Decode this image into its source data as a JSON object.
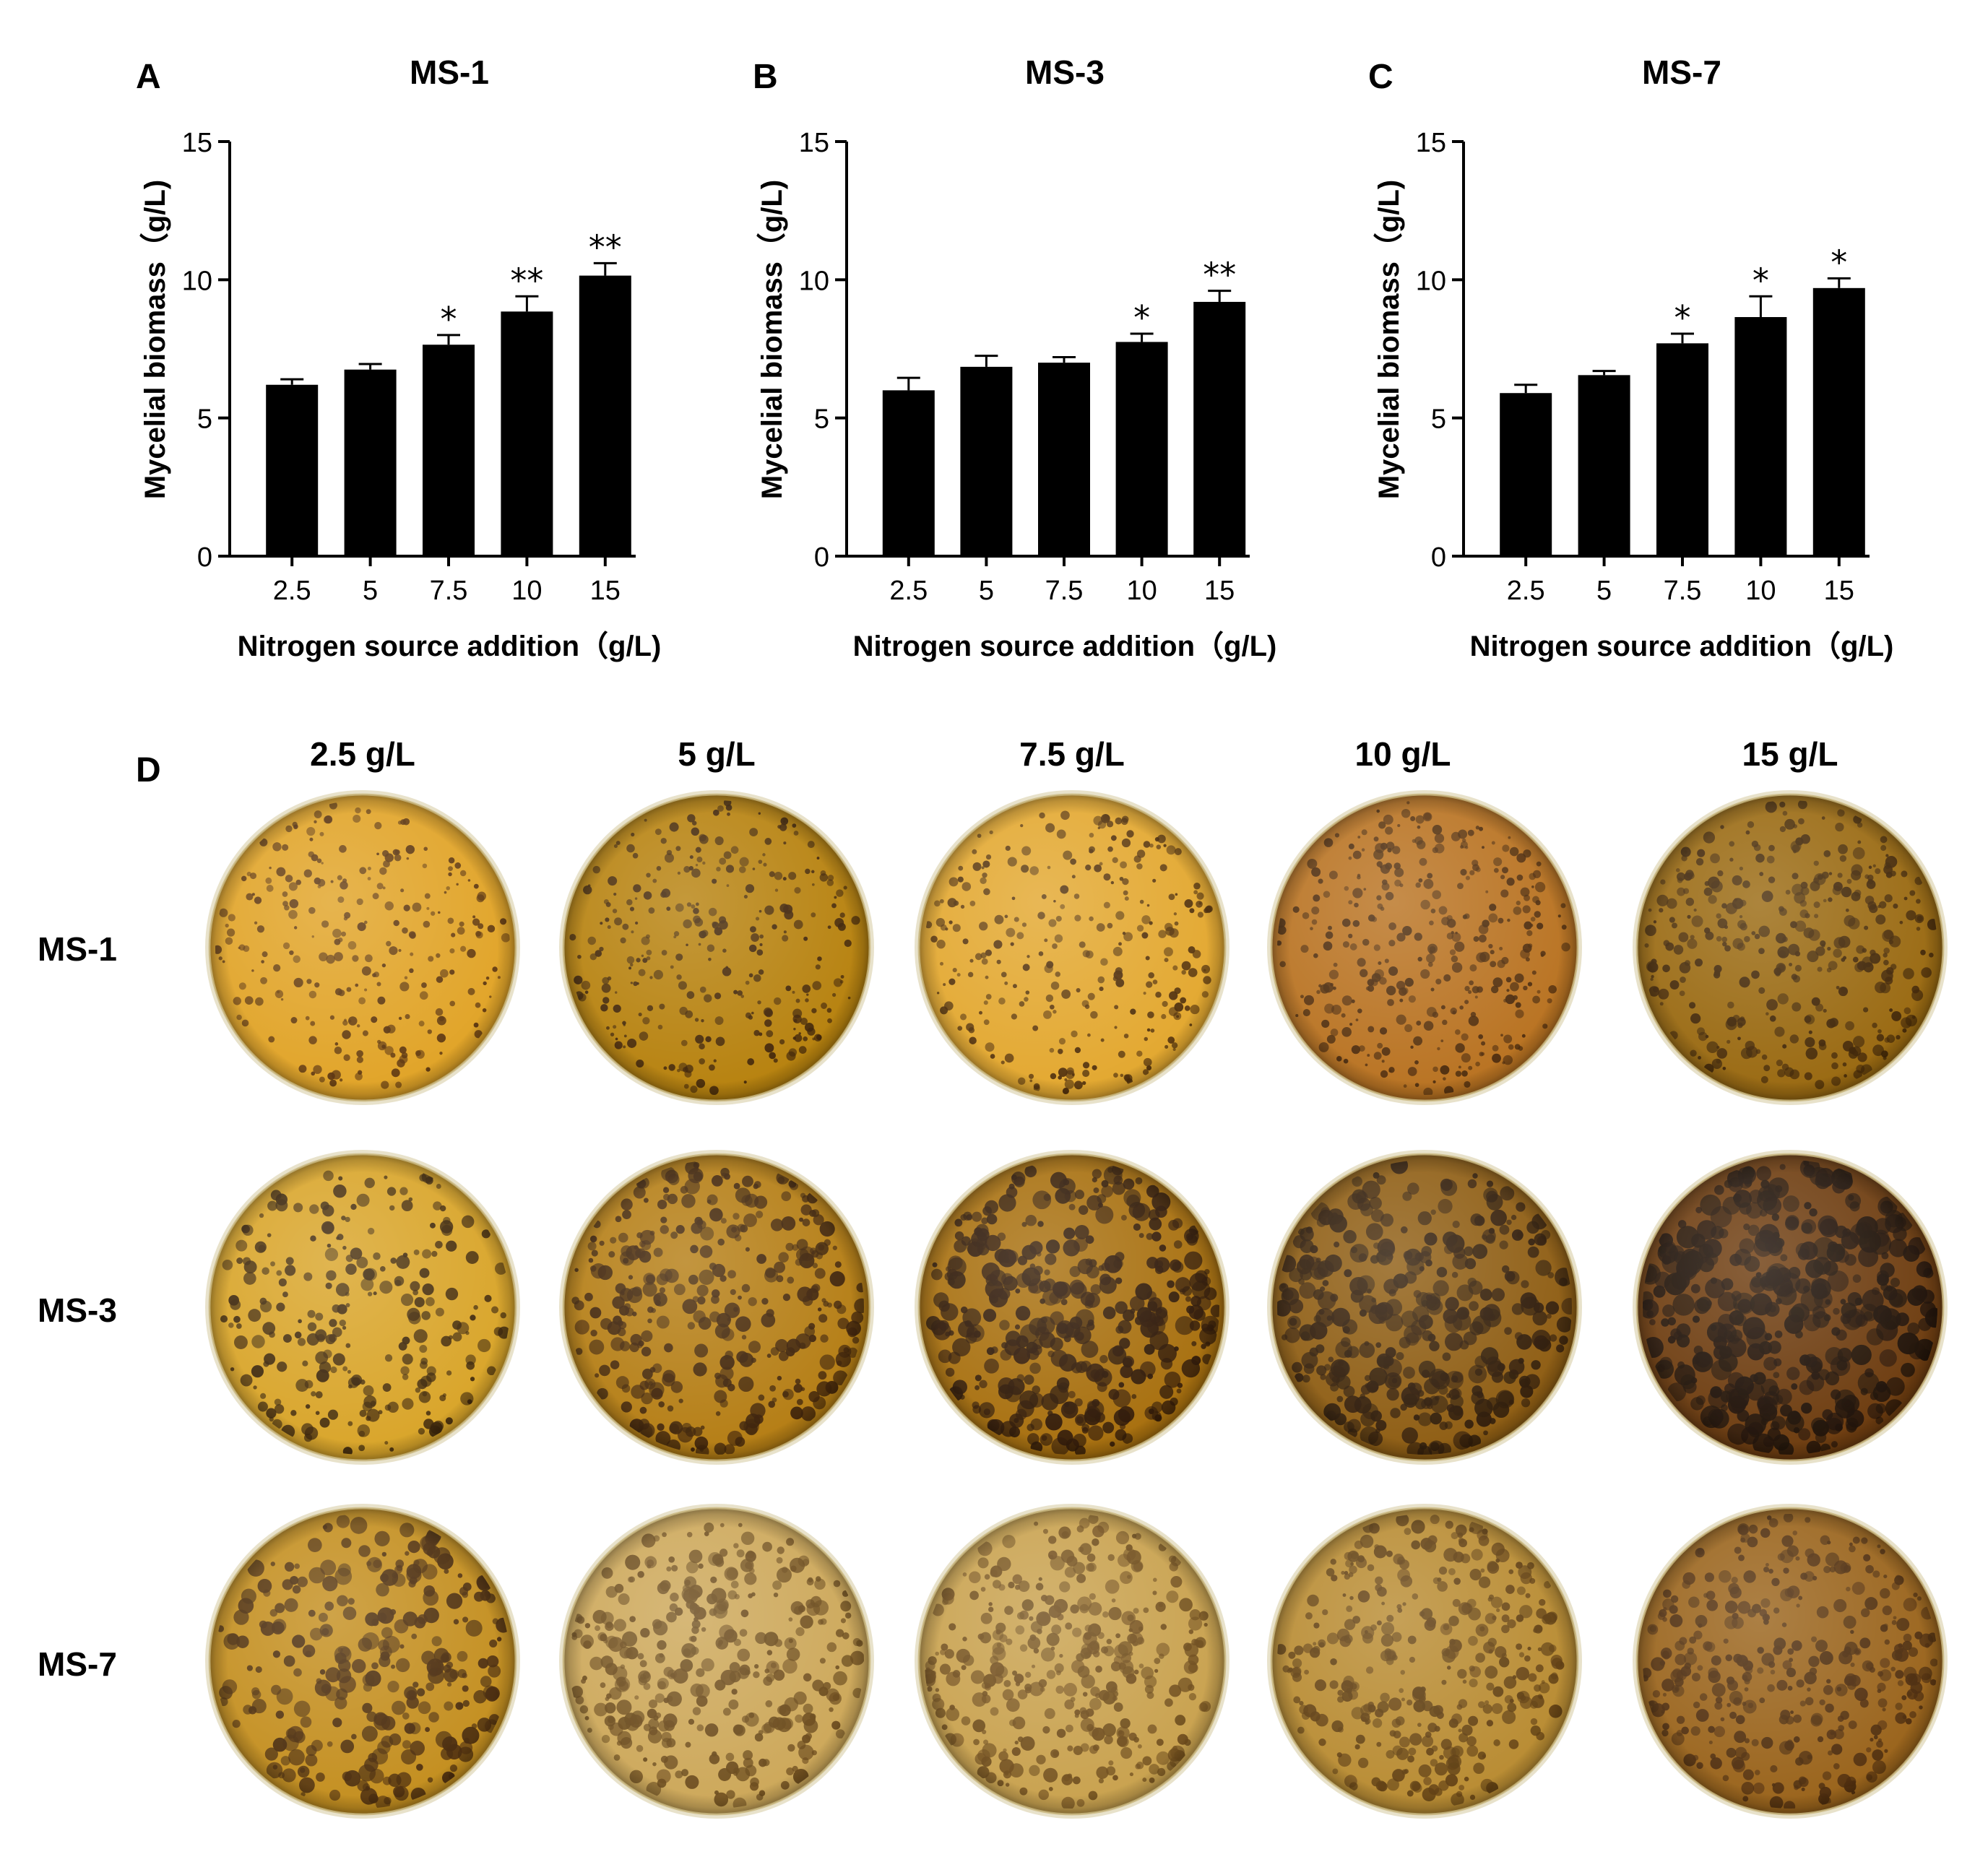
{
  "chart_data": [
    {
      "panel_label": "A",
      "type": "bar",
      "title": "MS-1",
      "xlabel": "Nitrogen source addition（g/L)",
      "ylabel": "Mycelial biomass（g/L)",
      "categories": [
        "2.5",
        "5",
        "7.5",
        "10",
        "15"
      ],
      "values": [
        6.2,
        6.75,
        7.65,
        8.85,
        10.15
      ],
      "errors": [
        0.2,
        0.2,
        0.35,
        0.55,
        0.45
      ],
      "significance": [
        "",
        "",
        "*",
        "**",
        "**"
      ],
      "ylim": [
        0,
        15
      ],
      "yticks": [
        "0",
        "5",
        "10",
        "15"
      ],
      "bar_color": "#000000"
    },
    {
      "panel_label": "B",
      "type": "bar",
      "title": "MS-3",
      "xlabel": "Nitrogen source addition（g/L)",
      "ylabel": "Mycelial biomass（g/L)",
      "categories": [
        "2.5",
        "5",
        "7.5",
        "10",
        "15"
      ],
      "values": [
        6.0,
        6.85,
        7.0,
        7.75,
        9.2
      ],
      "errors": [
        0.45,
        0.4,
        0.2,
        0.3,
        0.4
      ],
      "significance": [
        "",
        "",
        "",
        "*",
        "**"
      ],
      "ylim": [
        0,
        15
      ],
      "yticks": [
        "0",
        "5",
        "10",
        "15"
      ],
      "bar_color": "#000000"
    },
    {
      "panel_label": "C",
      "type": "bar",
      "title": "MS-7",
      "xlabel": "Nitrogen source addition（g/L)",
      "ylabel": "Mycelial biomass（g/L)",
      "categories": [
        "2.5",
        "5",
        "7.5",
        "10",
        "15"
      ],
      "values": [
        5.9,
        6.55,
        7.7,
        8.65,
        9.7
      ],
      "errors": [
        0.3,
        0.15,
        0.35,
        0.75,
        0.35
      ],
      "significance": [
        "",
        "",
        "*",
        "*",
        "*"
      ],
      "ylim": [
        0,
        15
      ],
      "yticks": [
        "0",
        "5",
        "10",
        "15"
      ],
      "bar_color": "#000000"
    }
  ],
  "photo_grid": {
    "panel_label": "D",
    "columns": [
      "2.5 g/L",
      "5 g/L",
      "7.5 g/L",
      "10 g/L",
      "15 g/L"
    ],
    "rows": [
      "MS-1",
      "MS-3",
      "MS-7"
    ],
    "plates": [
      [
        {
          "base": "#e1a428",
          "colony": "#5a3410",
          "density": 0.45,
          "size": 0.55
        },
        {
          "base": "#b7820f",
          "colony": "#3e2309",
          "density": 0.6,
          "size": 0.55
        },
        {
          "base": "#e3a830",
          "colony": "#4e2e0c",
          "density": 0.55,
          "size": 0.55
        },
        {
          "base": "#b97322",
          "colony": "#4a2a0d",
          "density": 0.75,
          "size": 0.6
        },
        {
          "base": "#9a6a12",
          "colony": "#3f2508",
          "density": 0.8,
          "size": 0.7
        }
      ],
      [
        {
          "base": "#d9a52a",
          "colony": "#3b250c",
          "density": 0.4,
          "size": 0.8
        },
        {
          "base": "#b57e15",
          "colony": "#3d220a",
          "density": 0.75,
          "size": 0.9
        },
        {
          "base": "#a8700f",
          "colony": "#2e1808",
          "density": 0.9,
          "size": 1.1
        },
        {
          "base": "#8f5e14",
          "colony": "#2f1c0b",
          "density": 0.85,
          "size": 1.1
        },
        {
          "base": "#6e3d10",
          "colony": "#1f1209",
          "density": 0.95,
          "size": 1.3
        }
      ],
      [
        {
          "base": "#c48f20",
          "colony": "#4a2c0e",
          "density": 0.55,
          "size": 1.0
        },
        {
          "base": "#cda85a",
          "colony": "#6a4a1c",
          "density": 0.8,
          "size": 0.9
        },
        {
          "base": "#c9a24f",
          "colony": "#6e4c1c",
          "density": 0.85,
          "size": 0.85
        },
        {
          "base": "#b98c33",
          "colony": "#5f3e12",
          "density": 0.85,
          "size": 0.8
        },
        {
          "base": "#9a641c",
          "colony": "#4c2c0e",
          "density": 0.85,
          "size": 0.8
        }
      ]
    ]
  }
}
